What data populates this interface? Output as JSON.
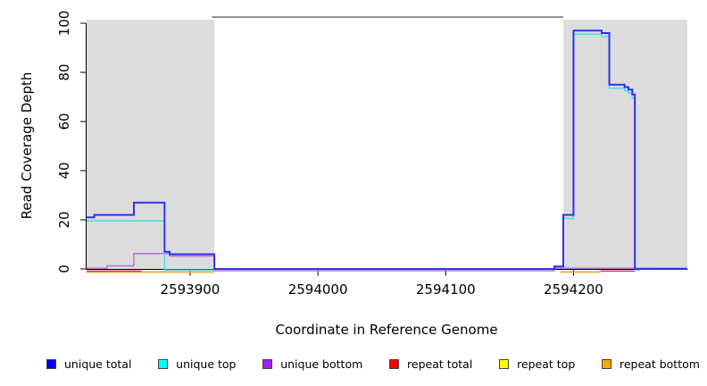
{
  "chart_data": {
    "type": "line",
    "subtype": "step-coverage",
    "title": "",
    "xlabel": "Coordinate in Reference Genome",
    "ylabel": "Read Coverage Depth",
    "xlim": [
      2593819,
      2594289
    ],
    "ylim": [
      0,
      100
    ],
    "x_ticks": [
      2593900,
      2594000,
      2594100,
      2594200
    ],
    "y_ticks": [
      0,
      20,
      40,
      60,
      80,
      100
    ],
    "grid": "off",
    "legend_position": "bottom",
    "shade_color": "#dcdcdc",
    "shaded_regions": [
      {
        "from": 2593819,
        "to": 2593919
      },
      {
        "from": 2594192,
        "to": 2594289
      }
    ],
    "top_annotation": {
      "from": 2593917,
      "to": 2594192,
      "value": 102.5,
      "color": "#8c8c8c"
    },
    "series": [
      {
        "name": "unique total",
        "color": "#0000ff",
        "line_color": "#2b32f0",
        "segments": [
          {
            "steps": [
              [
                2593819,
                21
              ],
              [
                2593825,
                22
              ],
              [
                2593856,
                27
              ],
              [
                2593880,
                7
              ],
              [
                2593884,
                6
              ],
              [
                2593919,
                0
              ],
              [
                2594185,
                1
              ],
              [
                2594192,
                22
              ],
              [
                2594200,
                97
              ],
              [
                2594222,
                96
              ],
              [
                2594228,
                75
              ],
              [
                2594240,
                74
              ],
              [
                2594243,
                73
              ],
              [
                2594246,
                71
              ],
              [
                2594248,
                0
              ]
            ],
            "end": 2594289
          }
        ]
      },
      {
        "name": "unique top",
        "color": "#00ffff",
        "line_color": "#4adee6",
        "segments": [
          {
            "steps": [
              [
                2593819,
                20
              ],
              [
                2593880,
                0
              ]
            ],
            "end": 2593919
          },
          {
            "steps": [
              [
                2594192,
                21
              ],
              [
                2594200,
                96
              ],
              [
                2594222,
                95
              ],
              [
                2594228,
                74
              ],
              [
                2594240,
                73
              ],
              [
                2594243,
                72
              ],
              [
                2594246,
                70
              ],
              [
                2594248,
                0
              ]
            ],
            "end": 2594252
          }
        ]
      },
      {
        "name": "unique bottom",
        "color": "#a020f0",
        "line_color": "#b671d9",
        "segments": [
          {
            "steps": [
              [
                2593819,
                1
              ],
              [
                2593835,
                2
              ],
              [
                2593856,
                7
              ],
              [
                2593884,
                6
              ],
              [
                2593919,
                0
              ],
              [
                2594185,
                1
              ]
            ],
            "end": 2594289
          }
        ]
      },
      {
        "name": "repeat total",
        "color": "#ff0000",
        "line_color": "#e73358",
        "segments": [
          {
            "steps": [
              [
                2593819,
                0
              ]
            ],
            "end": 2593862
          },
          {
            "steps": [
              [
                2594221,
                0
              ]
            ],
            "end": 2594248
          }
        ]
      },
      {
        "name": "repeat top",
        "color": "#ffff00",
        "line_color": "#f2f200",
        "segments": []
      },
      {
        "name": "repeat bottom",
        "color": "#ffa500",
        "line_color": "#ff9d26",
        "segments": [
          {
            "steps": [
              [
                2593819,
                0
              ]
            ],
            "end": 2593919
          },
          {
            "steps": [
              [
                2594190,
                0
              ]
            ],
            "end": 2594221
          }
        ]
      }
    ]
  }
}
